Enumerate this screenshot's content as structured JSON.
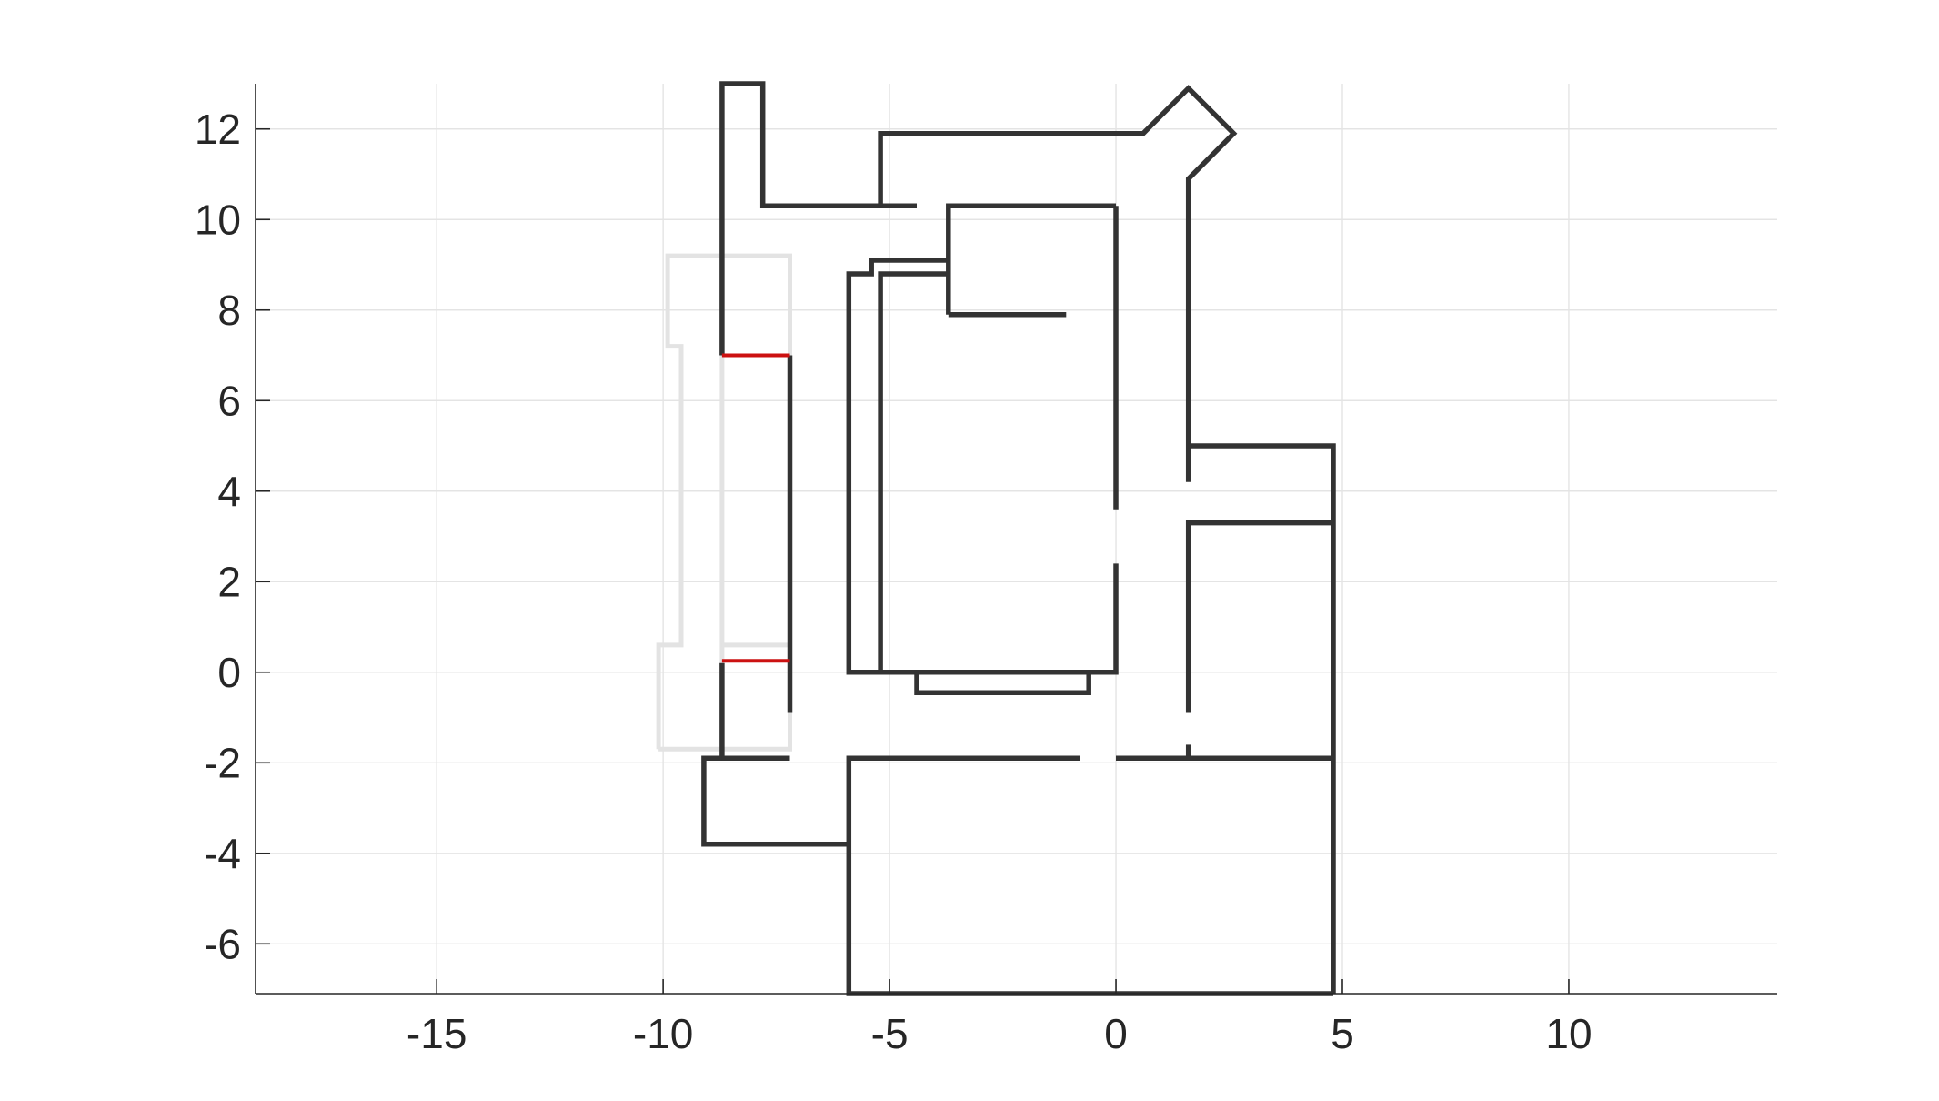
{
  "chart_data": {
    "type": "line",
    "title": "",
    "xlabel": "",
    "ylabel": "",
    "xlim": [
      -19,
      14.6
    ],
    "ylim": [
      -7.1,
      13
    ],
    "grid": true,
    "x_ticks": [
      -15,
      -10,
      -5,
      0,
      5,
      10
    ],
    "y_ticks": [
      -6,
      -4,
      -2,
      0,
      2,
      4,
      6,
      8,
      10,
      12
    ],
    "x_tick_labels": [
      "-15",
      "-10",
      "-5",
      "0",
      "5",
      "10"
    ],
    "y_tick_labels": [
      "-6",
      "-4",
      "-2",
      "0",
      "2",
      "4",
      "6",
      "8",
      "10",
      "12"
    ],
    "colors": {
      "walls": "#333333",
      "highlight": "#cc1111",
      "ghost": "#e3e3e3"
    },
    "series": [
      {
        "group": "ghost",
        "color": "#e3e3e3",
        "lines": [
          [
            [
              -10.1,
              -1.7
            ],
            [
              -7.2,
              -1.7
            ],
            [
              -7.2,
              9.2
            ],
            [
              -9.9,
              9.2
            ],
            [
              -9.9,
              7.2
            ],
            [
              -9.6,
              7.2
            ],
            [
              -9.6,
              0.6
            ],
            [
              -10.1,
              0.6
            ],
            [
              -10.1,
              -1.7
            ]
          ],
          [
            [
              -8.7,
              -1.7
            ],
            [
              -8.7,
              9.2
            ]
          ],
          [
            [
              -8.7,
              0.6
            ],
            [
              -7.2,
              0.6
            ]
          ]
        ]
      },
      {
        "group": "walls",
        "color": "#333333",
        "lines": [
          [
            [
              -4.4,
              10.3
            ],
            [
              -7.8,
              10.3
            ],
            [
              -7.8,
              13.0
            ],
            [
              -8.7,
              13.0
            ],
            [
              -8.7,
              7.0
            ]
          ],
          [
            [
              -5.2,
              10.3
            ],
            [
              -5.2,
              11.9
            ],
            [
              0.6,
              11.9
            ],
            [
              1.6,
              12.9
            ],
            [
              2.6,
              11.9
            ],
            [
              1.6,
              10.9
            ],
            [
              1.6,
              4.2
            ]
          ],
          [
            [
              1.6,
              5.0
            ],
            [
              4.8,
              5.0
            ],
            [
              4.8,
              -7.1
            ]
          ],
          [
            [
              4.8,
              3.3
            ],
            [
              1.6,
              3.3
            ],
            [
              1.6,
              -0.9
            ]
          ],
          [
            [
              1.6,
              -1.6
            ],
            [
              1.6,
              -1.9
            ]
          ],
          [
            [
              -7.2,
              7.0
            ],
            [
              -7.2,
              -0.9
            ]
          ],
          [
            [
              -8.7,
              0.2
            ],
            [
              -8.7,
              -1.9
            ],
            [
              -7.2,
              -1.9
            ]
          ],
          [
            [
              -5.9,
              -3.8
            ],
            [
              -9.1,
              -3.8
            ],
            [
              -9.1,
              -1.9
            ],
            [
              -8.7,
              -1.9
            ]
          ],
          [
            [
              -0.8,
              -1.9
            ],
            [
              -5.9,
              -1.9
            ],
            [
              -5.9,
              -7.1
            ],
            [
              4.8,
              -7.1
            ]
          ],
          [
            [
              0.0,
              -1.9
            ],
            [
              4.8,
              -1.9
            ]
          ],
          [
            [
              0.0,
              10.3
            ],
            [
              0.0,
              3.6
            ]
          ],
          [
            [
              0.0,
              2.4
            ],
            [
              0.0,
              0.0
            ],
            [
              -5.9,
              0.0
            ],
            [
              -5.9,
              8.8
            ],
            [
              -5.4,
              8.8
            ],
            [
              -5.4,
              9.1
            ],
            [
              -3.7,
              9.1
            ]
          ],
          [
            [
              -5.2,
              0.0
            ],
            [
              -5.2,
              8.8
            ],
            [
              -3.7,
              8.8
            ]
          ],
          [
            [
              -3.7,
              7.9
            ],
            [
              -3.7,
              10.3
            ],
            [
              0.0,
              10.3
            ]
          ],
          [
            [
              -3.7,
              7.9
            ],
            [
              -1.1,
              7.9
            ]
          ],
          [
            [
              -4.4,
              0.0
            ],
            [
              -4.4,
              -0.45
            ],
            [
              -0.6,
              -0.45
            ],
            [
              -0.6,
              0.0
            ]
          ]
        ]
      },
      {
        "group": "highlight",
        "color": "#cc1111",
        "lines": [
          [
            [
              -8.7,
              7.0
            ],
            [
              -7.2,
              7.0
            ]
          ],
          [
            [
              -8.7,
              0.25
            ],
            [
              -7.2,
              0.25
            ]
          ]
        ]
      }
    ]
  }
}
